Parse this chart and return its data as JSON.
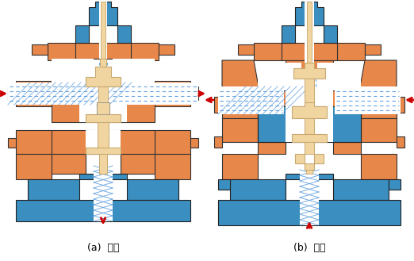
{
  "label_a": "(a)  分流",
  "label_b": "(b)  合流",
  "bg_color": "#ffffff",
  "orange_color": "#E8874A",
  "blue_color": "#3A8EC0",
  "light_tan": "#F0D5A0",
  "dark_tan": "#C8A870",
  "outline": "#1A1A1A",
  "arrow_color": "#CC0000",
  "blue_line_color": "#5599DD",
  "figsize": [
    5.22,
    3.29
  ],
  "dpi": 100
}
